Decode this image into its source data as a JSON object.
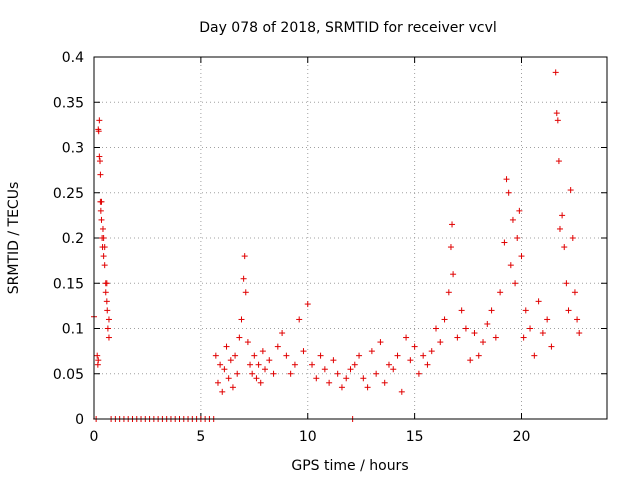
{
  "chart_data": {
    "type": "scatter",
    "title": "Day 078 of 2018, SRMTID for receiver vcvl",
    "xlabel": "GPS time / hours",
    "ylabel": "SRMTID / TECUs",
    "xlim": [
      0,
      24
    ],
    "ylim": [
      0,
      0.4
    ],
    "xticks": [
      0,
      5,
      10,
      15,
      20
    ],
    "xtick_labels": [
      "0",
      "5",
      "10",
      "15",
      "20"
    ],
    "yticks": [
      0,
      0.05,
      0.1,
      0.15,
      0.2,
      0.25,
      0.3,
      0.35,
      0.4
    ],
    "ytick_labels": [
      "0",
      "0.05",
      "0.1",
      "0.15",
      "0.2",
      "0.25",
      "0.3",
      "0.35",
      "0.4"
    ],
    "grid": true,
    "marker": "plus",
    "marker_color": "#e00000",
    "series": [
      {
        "name": "SRMTID",
        "points": [
          [
            0.0,
            0.113
          ],
          [
            0.1,
            0.0
          ],
          [
            0.15,
            0.07
          ],
          [
            0.18,
            0.06
          ],
          [
            0.2,
            0.065
          ],
          [
            0.2,
            0.32
          ],
          [
            0.22,
            0.318
          ],
          [
            0.25,
            0.33
          ],
          [
            0.25,
            0.29
          ],
          [
            0.28,
            0.285
          ],
          [
            0.3,
            0.27
          ],
          [
            0.3,
            0.24
          ],
          [
            0.32,
            0.23
          ],
          [
            0.35,
            0.22
          ],
          [
            0.35,
            0.24
          ],
          [
            0.38,
            0.2
          ],
          [
            0.4,
            0.19
          ],
          [
            0.42,
            0.21
          ],
          [
            0.45,
            0.18
          ],
          [
            0.45,
            0.2
          ],
          [
            0.5,
            0.17
          ],
          [
            0.5,
            0.19
          ],
          [
            0.55,
            0.15
          ],
          [
            0.55,
            0.14
          ],
          [
            0.6,
            0.13
          ],
          [
            0.6,
            0.15
          ],
          [
            0.62,
            0.12
          ],
          [
            0.65,
            0.1
          ],
          [
            0.7,
            0.09
          ],
          [
            0.7,
            0.11
          ],
          [
            0.8,
            0.0
          ],
          [
            1.0,
            0.0
          ],
          [
            1.2,
            0.0
          ],
          [
            1.4,
            0.0
          ],
          [
            1.6,
            0.0
          ],
          [
            1.8,
            0.0
          ],
          [
            2.0,
            0.0
          ],
          [
            2.2,
            0.0
          ],
          [
            2.4,
            0.0
          ],
          [
            2.6,
            0.0
          ],
          [
            2.8,
            0.0
          ],
          [
            3.0,
            0.0
          ],
          [
            3.2,
            0.0
          ],
          [
            3.4,
            0.0
          ],
          [
            3.6,
            0.0
          ],
          [
            3.8,
            0.0
          ],
          [
            4.0,
            0.0
          ],
          [
            4.2,
            0.0
          ],
          [
            4.4,
            0.0
          ],
          [
            4.6,
            0.0
          ],
          [
            4.8,
            0.0
          ],
          [
            5.0,
            0.0
          ],
          [
            5.2,
            0.0
          ],
          [
            5.4,
            0.0
          ],
          [
            5.6,
            0.0
          ],
          [
            12.1,
            0.0
          ],
          [
            5.7,
            0.07
          ],
          [
            5.8,
            0.04
          ],
          [
            5.9,
            0.06
          ],
          [
            6.0,
            0.03
          ],
          [
            6.1,
            0.055
          ],
          [
            6.2,
            0.08
          ],
          [
            6.3,
            0.045
          ],
          [
            6.4,
            0.065
          ],
          [
            6.5,
            0.035
          ],
          [
            6.6,
            0.07
          ],
          [
            6.7,
            0.05
          ],
          [
            6.8,
            0.09
          ],
          [
            6.9,
            0.11
          ],
          [
            7.0,
            0.155
          ],
          [
            7.05,
            0.18
          ],
          [
            7.1,
            0.14
          ],
          [
            7.2,
            0.085
          ],
          [
            7.3,
            0.06
          ],
          [
            7.4,
            0.05
          ],
          [
            7.5,
            0.07
          ],
          [
            7.6,
            0.045
          ],
          [
            7.7,
            0.06
          ],
          [
            7.8,
            0.04
          ],
          [
            7.9,
            0.075
          ],
          [
            8.0,
            0.055
          ],
          [
            8.2,
            0.065
          ],
          [
            8.4,
            0.05
          ],
          [
            8.6,
            0.08
          ],
          [
            8.8,
            0.095
          ],
          [
            9.0,
            0.07
          ],
          [
            9.2,
            0.05
          ],
          [
            9.4,
            0.06
          ],
          [
            9.6,
            0.11
          ],
          [
            9.8,
            0.075
          ],
          [
            10.0,
            0.127
          ],
          [
            10.2,
            0.06
          ],
          [
            10.4,
            0.045
          ],
          [
            10.6,
            0.07
          ],
          [
            10.8,
            0.055
          ],
          [
            11.0,
            0.04
          ],
          [
            11.2,
            0.065
          ],
          [
            11.4,
            0.05
          ],
          [
            11.6,
            0.035
          ],
          [
            11.8,
            0.045
          ],
          [
            12.0,
            0.055
          ],
          [
            12.2,
            0.06
          ],
          [
            12.4,
            0.07
          ],
          [
            12.6,
            0.045
          ],
          [
            12.8,
            0.035
          ],
          [
            13.0,
            0.075
          ],
          [
            13.2,
            0.05
          ],
          [
            13.4,
            0.085
          ],
          [
            13.6,
            0.04
          ],
          [
            13.8,
            0.06
          ],
          [
            14.0,
            0.055
          ],
          [
            14.2,
            0.07
          ],
          [
            14.4,
            0.03
          ],
          [
            14.6,
            0.09
          ],
          [
            14.8,
            0.065
          ],
          [
            15.0,
            0.08
          ],
          [
            15.2,
            0.05
          ],
          [
            15.4,
            0.07
          ],
          [
            15.6,
            0.06
          ],
          [
            15.8,
            0.075
          ],
          [
            16.0,
            0.1
          ],
          [
            16.2,
            0.085
          ],
          [
            16.4,
            0.11
          ],
          [
            16.6,
            0.14
          ],
          [
            16.7,
            0.19
          ],
          [
            16.75,
            0.215
          ],
          [
            16.8,
            0.16
          ],
          [
            17.0,
            0.09
          ],
          [
            17.2,
            0.12
          ],
          [
            17.4,
            0.1
          ],
          [
            17.6,
            0.065
          ],
          [
            17.8,
            0.095
          ],
          [
            18.0,
            0.07
          ],
          [
            18.2,
            0.085
          ],
          [
            18.4,
            0.105
          ],
          [
            18.6,
            0.12
          ],
          [
            18.8,
            0.09
          ],
          [
            19.0,
            0.14
          ],
          [
            19.2,
            0.195
          ],
          [
            19.3,
            0.265
          ],
          [
            19.4,
            0.25
          ],
          [
            19.5,
            0.17
          ],
          [
            19.6,
            0.22
          ],
          [
            19.7,
            0.15
          ],
          [
            19.8,
            0.2
          ],
          [
            19.9,
            0.23
          ],
          [
            20.0,
            0.18
          ],
          [
            20.1,
            0.09
          ],
          [
            20.2,
            0.12
          ],
          [
            20.4,
            0.1
          ],
          [
            20.6,
            0.07
          ],
          [
            20.8,
            0.13
          ],
          [
            21.0,
            0.095
          ],
          [
            21.2,
            0.11
          ],
          [
            21.4,
            0.08
          ],
          [
            21.6,
            0.383
          ],
          [
            21.65,
            0.338
          ],
          [
            21.7,
            0.33
          ],
          [
            21.75,
            0.285
          ],
          [
            21.8,
            0.21
          ],
          [
            21.9,
            0.225
          ],
          [
            22.0,
            0.19
          ],
          [
            22.1,
            0.15
          ],
          [
            22.2,
            0.12
          ],
          [
            22.3,
            0.253
          ],
          [
            22.4,
            0.2
          ],
          [
            22.5,
            0.14
          ],
          [
            22.6,
            0.11
          ],
          [
            22.7,
            0.095
          ]
        ]
      }
    ]
  }
}
